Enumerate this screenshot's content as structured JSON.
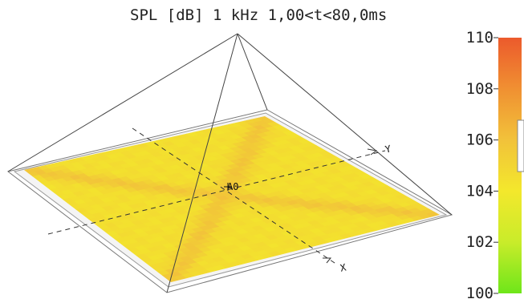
{
  "chart_data": {
    "type": "heatmap",
    "title": "SPL [dB]  1 kHz 1,00<t<80,0ms",
    "colorbar": {
      "min": 100,
      "max": 110,
      "ticks": [
        "110",
        "108",
        "106",
        "104",
        "102",
        "100"
      ],
      "colors": [
        "#6ee61a",
        "#c9ec2a",
        "#f3e82c",
        "#f2c23a",
        "#f09032",
        "#ec5a2c"
      ]
    },
    "receiver_label": "A0",
    "axis_labels": {
      "x": "X",
      "y": "Y"
    },
    "field": {
      "base_level": 104.5,
      "diagonal_level": 105.8,
      "notes": "SPL nearly uniform (~104-106 dB) over the plane with a slightly higher X-shaped ridge along the diagonals"
    }
  }
}
